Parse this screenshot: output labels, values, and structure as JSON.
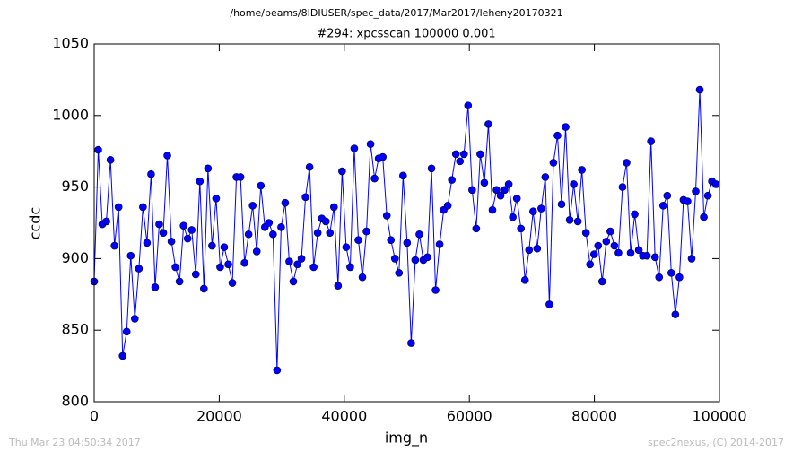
{
  "chart_data": {
    "type": "line",
    "suptitle": "/home/beams/8IDIUSER/spec_data/2017/Mar2017/leheny20170321",
    "title": "#294: xpcsscan 100000 0.001",
    "xlabel": "img_n",
    "ylabel": "ccdc",
    "footer_left": "Thu Mar 23 04:50:34 2017",
    "footer_right": "spec2nexus, (C) 2014-2017",
    "xlim": [
      0,
      100000
    ],
    "xticks": [
      0,
      20000,
      40000,
      60000,
      80000,
      100000
    ],
    "ylim": [
      800,
      1050
    ],
    "yticks": [
      800,
      850,
      900,
      950,
      1000,
      1050
    ],
    "x": [
      0,
      650,
      1300,
      1950,
      2600,
      3250,
      3900,
      4550,
      5200,
      5850,
      6500,
      7150,
      7800,
      8450,
      9100,
      9750,
      10400,
      11050,
      11700,
      12350,
      13000,
      13650,
      14300,
      14950,
      15600,
      16250,
      16900,
      17550,
      18200,
      18850,
      19500,
      20150,
      20800,
      21450,
      22100,
      22750,
      23400,
      24050,
      24700,
      25350,
      26000,
      26650,
      27300,
      27950,
      28600,
      29250,
      29900,
      30550,
      31200,
      31850,
      32500,
      33150,
      33800,
      34450,
      35100,
      35750,
      36400,
      37050,
      37700,
      38350,
      39000,
      39650,
      40300,
      40950,
      41600,
      42250,
      42900,
      43550,
      44200,
      44850,
      45500,
      46150,
      46800,
      47450,
      48100,
      48750,
      49400,
      50050,
      50700,
      51350,
      52000,
      52650,
      53300,
      53950,
      54600,
      55250,
      55900,
      56550,
      57200,
      57850,
      58500,
      59150,
      59800,
      60450,
      61100,
      61750,
      62400,
      63050,
      63700,
      64350,
      65000,
      65650,
      66300,
      66950,
      67600,
      68250,
      68900,
      69550,
      70200,
      70850,
      71500,
      72150,
      72800,
      73450,
      74100,
      74750,
      75400,
      76050,
      76700,
      77350,
      78000,
      78650,
      79300,
      79950,
      80600,
      81250,
      81900,
      82550,
      83200,
      83850,
      84500,
      85150,
      85800,
      86450,
      87100,
      87750,
      88400,
      89050,
      89700,
      90350,
      91000,
      91650,
      92300,
      92950,
      93600,
      94250,
      94900,
      95550,
      96200,
      96850,
      97500,
      98150,
      98800,
      99450
    ],
    "series": [
      {
        "name": "ccdc",
        "color": "#0000ff",
        "marker_edge": "#000033",
        "values": [
          884,
          976,
          924,
          926,
          969,
          909,
          936,
          832,
          849,
          902,
          858,
          893,
          936,
          911,
          959,
          880,
          924,
          918,
          972,
          912,
          894,
          884,
          923,
          914,
          920,
          889,
          954,
          879,
          963,
          909,
          942,
          894,
          908,
          896,
          883,
          957,
          957,
          897,
          917,
          937,
          905,
          951,
          922,
          925,
          917,
          822,
          922,
          939,
          898,
          884,
          896,
          900,
          943,
          964,
          894,
          918,
          928,
          926,
          918,
          936,
          881,
          961,
          908,
          894,
          977,
          913,
          887,
          919,
          980,
          956,
          970,
          971,
          930,
          913,
          900,
          890,
          958,
          911,
          841,
          899,
          917,
          899,
          901,
          963,
          878,
          910,
          934,
          937,
          955,
          973,
          968,
          973,
          1007,
          948,
          921,
          973,
          953,
          994,
          934,
          948,
          944,
          948,
          952,
          929,
          942,
          921,
          885,
          906,
          933,
          907,
          935,
          957,
          868,
          967,
          986,
          938,
          992,
          927,
          952,
          926,
          962,
          918,
          896,
          903,
          909,
          884,
          912,
          919,
          909,
          904,
          950,
          967,
          904,
          931,
          906,
          902,
          902,
          982,
          901,
          887,
          937,
          944,
          890,
          861,
          887,
          941,
          940,
          900,
          947,
          1018,
          929,
          944,
          954,
          952
        ]
      }
    ]
  }
}
